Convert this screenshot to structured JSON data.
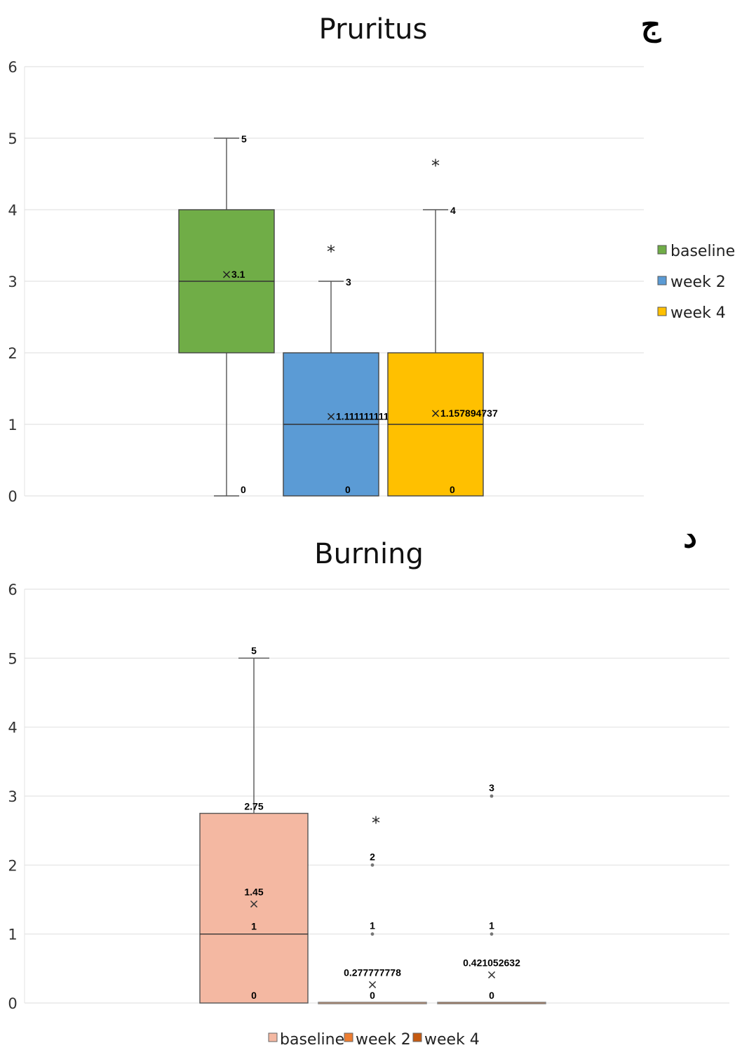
{
  "chart_data": [
    {
      "type": "box",
      "title": "Pruritus",
      "panel_letter": "ج",
      "ylim": [
        0,
        6
      ],
      "yticks": [
        "0",
        "1",
        "2",
        "3",
        "4",
        "5",
        "6"
      ],
      "grid": true,
      "legend_position": "right",
      "series": [
        {
          "name": "baseline",
          "color": "#70ad47",
          "min": 0,
          "q1": 2,
          "median": 3,
          "q3": 4,
          "max": 5,
          "mean": 3.1,
          "outliers": [],
          "labels": {
            "max": "5",
            "mean": "3.1",
            "min": "0"
          }
        },
        {
          "name": "week 2",
          "color": "#5b9bd5",
          "min": 0,
          "q1": 0,
          "median": 1,
          "q3": 2,
          "max": 3,
          "mean": 1.111111111,
          "outliers": [
            3.45
          ],
          "labels": {
            "max": "3",
            "mean": "1.111111111",
            "min": "0"
          }
        },
        {
          "name": "week 4",
          "color": "#ffc000",
          "min": 0,
          "q1": 0,
          "median": 1,
          "q3": 2,
          "max": 4,
          "mean": 1.157894737,
          "outliers": [
            4.65
          ],
          "labels": {
            "max": "4",
            "mean": "1.157894737",
            "min": "0"
          }
        }
      ]
    },
    {
      "type": "box",
      "title": "Burning",
      "panel_letter": "د",
      "ylim": [
        0,
        6
      ],
      "yticks": [
        "0",
        "1",
        "2",
        "3",
        "4",
        "5",
        "6"
      ],
      "grid": true,
      "legend_position": "bottom",
      "series": [
        {
          "name": "baseline",
          "color": "#f4b8a2",
          "min": 0,
          "q1": 0,
          "median": 1,
          "q3": 2.75,
          "max": 5,
          "mean": 1.45,
          "points": [],
          "outliers": [],
          "labels": {
            "max": "5",
            "q3": "2.75",
            "mean": "1.45",
            "median": "1",
            "min": "0"
          }
        },
        {
          "name": "week 2",
          "color": "#ed7d31",
          "min": 0,
          "q1": 0,
          "median": 0,
          "q3": 0,
          "max": 0,
          "mean": 0.277777778,
          "points": [
            2,
            1
          ],
          "outliers": [
            2.65
          ],
          "labels": {
            "points": [
              "2",
              "1"
            ],
            "mean": "0.277777778",
            "min": "0"
          }
        },
        {
          "name": "week 4",
          "color": "#c55a11",
          "min": 0,
          "q1": 0,
          "median": 0,
          "q3": 0,
          "max": 0,
          "mean": 0.421052632,
          "points": [
            3,
            1
          ],
          "outliers": [],
          "labels": {
            "points": [
              "3",
              "1"
            ],
            "mean": "0.421052632",
            "min": "0"
          }
        }
      ]
    }
  ]
}
